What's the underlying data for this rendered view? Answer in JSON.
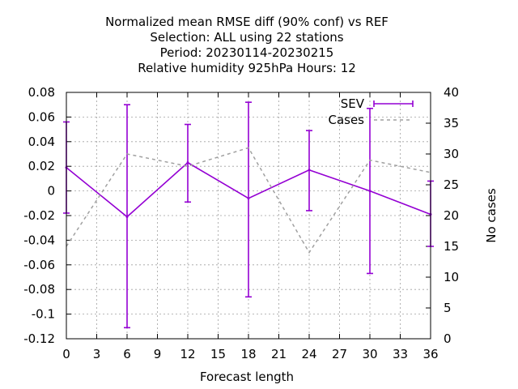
{
  "chart_data": {
    "type": "line",
    "title_lines": [
      "Normalized mean RMSE diff (90% conf) vs REF",
      "Selection: ALL using    22 stations",
      "Period: 20230114-20230215",
      "Relative humidity 925hPa   Hours:  12"
    ],
    "xlabel": "Forecast length",
    "ylabel": "",
    "y2label": "No cases",
    "xlim": [
      0,
      36
    ],
    "ylim": [
      -0.12,
      0.08
    ],
    "y2lim": [
      0,
      40
    ],
    "xticks": [
      "0",
      "3",
      "6",
      "9",
      "12",
      "15",
      "18",
      "21",
      "24",
      "27",
      "30",
      "33",
      "36"
    ],
    "yticks": [
      "-0.12",
      "-0.1",
      "-0.08",
      "-0.06",
      "-0.04",
      "-0.02",
      "0",
      "0.02",
      "0.04",
      "0.06",
      "0.08"
    ],
    "y2ticks": [
      "0",
      "5",
      "10",
      "15",
      "20",
      "25",
      "30",
      "35",
      "40"
    ],
    "grid": true,
    "legend_position": "top-right",
    "series": [
      {
        "name": "SEV",
        "color": "#9400d3",
        "axis": "left",
        "style": "line-errorbars",
        "x": [
          0,
          6,
          12,
          18,
          24,
          30,
          36
        ],
        "y": [
          0.019,
          -0.021,
          0.023,
          -0.006,
          0.017,
          0.0,
          -0.019
        ],
        "ylow": [
          -0.018,
          -0.111,
          -0.009,
          -0.086,
          -0.016,
          -0.067,
          -0.045
        ],
        "yhigh": [
          0.056,
          0.07,
          0.054,
          0.072,
          0.049,
          0.067,
          0.008
        ]
      },
      {
        "name": "Cases",
        "color": "#a0a0a0",
        "axis": "right",
        "style": "dashed",
        "x": [
          0,
          6,
          12,
          18,
          24,
          30,
          36
        ],
        "y": [
          15,
          30,
          28,
          31,
          14,
          29,
          27
        ]
      }
    ]
  }
}
